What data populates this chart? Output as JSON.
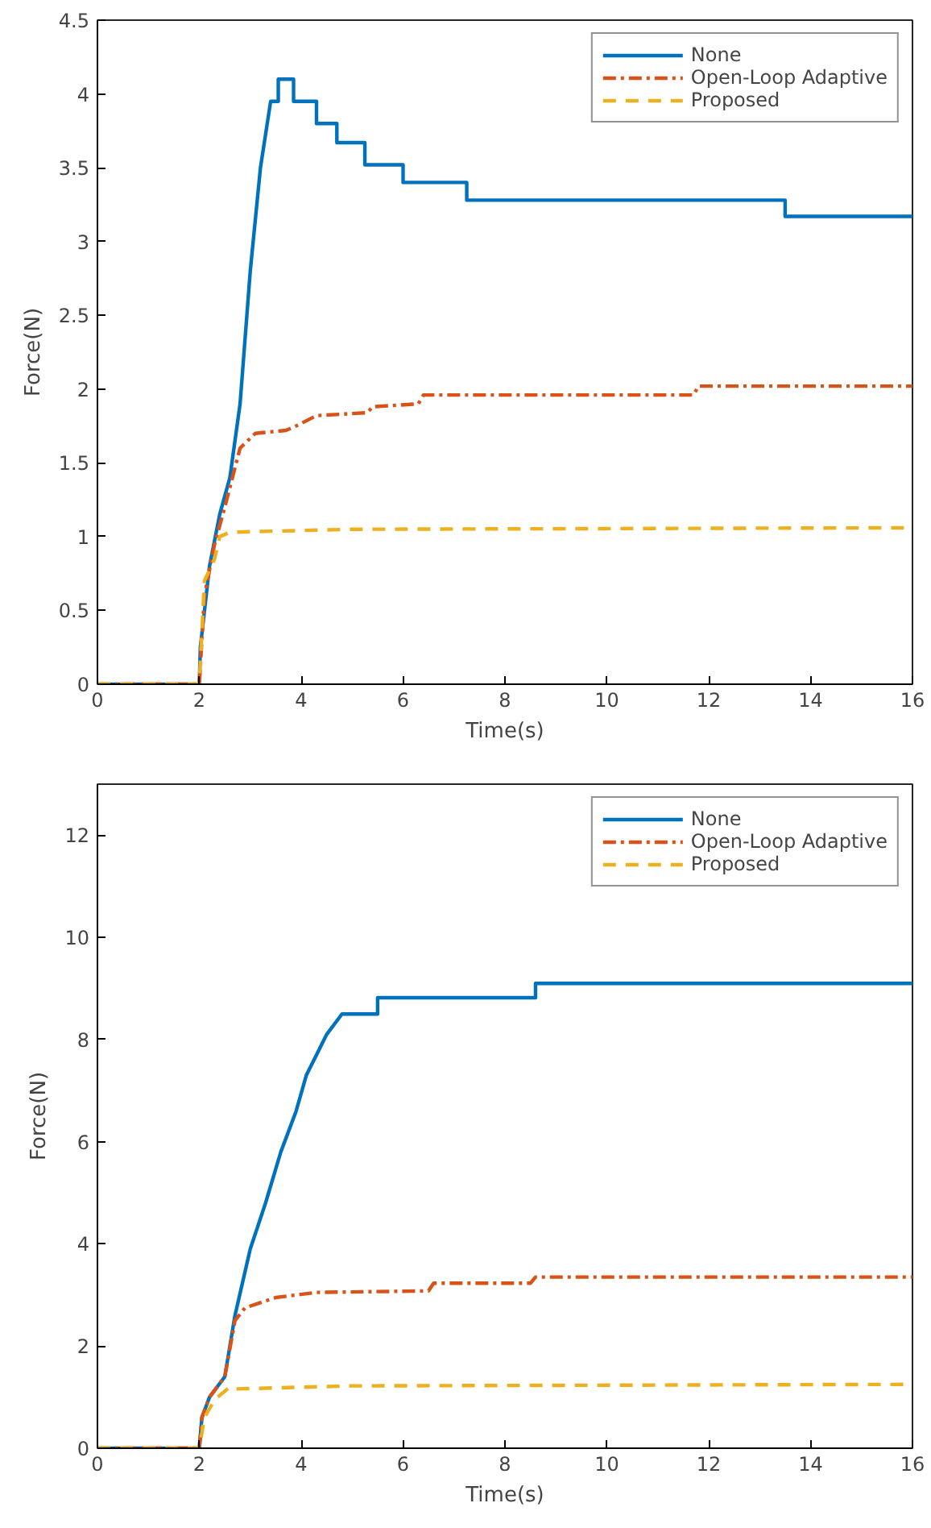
{
  "chart_data": [
    {
      "type": "line",
      "xlabel": "Time(s)",
      "ylabel": "Force(N)",
      "xlim": [
        0,
        16
      ],
      "ylim": [
        0,
        4.5
      ],
      "xticks": [
        0,
        2,
        4,
        6,
        8,
        10,
        12,
        14,
        16
      ],
      "yticks": [
        0,
        0.5,
        1,
        1.5,
        2,
        2.5,
        3,
        3.5,
        4,
        4.5
      ],
      "grid": false,
      "legend": "top right",
      "series": [
        {
          "name": "None",
          "color": "#0072bd",
          "line_style": "solid",
          "x": [
            0,
            2,
            2.02,
            2.2,
            2.4,
            2.6,
            2.8,
            3.0,
            3.2,
            3.4,
            3.55,
            3.55,
            3.85,
            3.85,
            4.3,
            4.3,
            4.7,
            4.7,
            5.25,
            5.25,
            6.0,
            6.0,
            7.25,
            7.25,
            13.5,
            13.5,
            16
          ],
          "values": [
            0,
            0,
            0.25,
            0.8,
            1.15,
            1.4,
            1.9,
            2.8,
            3.5,
            3.95,
            3.95,
            4.1,
            4.1,
            3.95,
            3.95,
            3.8,
            3.8,
            3.67,
            3.67,
            3.52,
            3.52,
            3.4,
            3.4,
            3.28,
            3.28,
            3.17,
            3.17
          ]
        },
        {
          "name": "Open-Loop Adaptive",
          "color": "#d95319",
          "line_style": "dashdot",
          "x": [
            0,
            2,
            2.1,
            2.3,
            2.5,
            2.8,
            3.1,
            3.7,
            3.9,
            4.3,
            5.3,
            5.4,
            6.3,
            6.4,
            11.7,
            11.8,
            16
          ],
          "values": [
            0,
            0,
            0.6,
            0.95,
            1.2,
            1.6,
            1.7,
            1.72,
            1.75,
            1.82,
            1.84,
            1.88,
            1.9,
            1.96,
            1.96,
            2.02,
            2.02
          ]
        },
        {
          "name": "Proposed",
          "color": "#edb120",
          "line_style": "dashed",
          "x": [
            0,
            2,
            2.1,
            2.3,
            2.4,
            2.6,
            5.0,
            16
          ],
          "values": [
            0,
            0,
            0.7,
            0.85,
            1.0,
            1.03,
            1.05,
            1.06
          ]
        }
      ]
    },
    {
      "type": "line",
      "xlabel": "Time(s)",
      "ylabel": "Force(N)",
      "xlim": [
        0,
        16
      ],
      "ylim": [
        0,
        13
      ],
      "xticks": [
        0,
        2,
        4,
        6,
        8,
        10,
        12,
        14,
        16
      ],
      "yticks": [
        0,
        2,
        4,
        6,
        8,
        10,
        12
      ],
      "grid": false,
      "legend": "top right",
      "series": [
        {
          "name": "None",
          "color": "#0072bd",
          "line_style": "solid",
          "x": [
            0,
            2,
            2.05,
            2.2,
            2.5,
            2.7,
            3.0,
            3.3,
            3.6,
            3.9,
            4.1,
            4.3,
            4.5,
            4.8,
            5.5,
            5.5,
            8.6,
            8.6,
            16
          ],
          "values": [
            0,
            0,
            0.6,
            1.0,
            1.4,
            2.6,
            3.9,
            4.8,
            5.8,
            6.6,
            7.3,
            7.7,
            8.1,
            8.5,
            8.5,
            8.82,
            8.82,
            9.1,
            9.1
          ]
        },
        {
          "name": "Open-Loop Adaptive",
          "color": "#d95319",
          "line_style": "dashdot",
          "x": [
            0,
            2,
            2.05,
            2.2,
            2.5,
            2.7,
            2.9,
            3.5,
            4.3,
            6.5,
            6.6,
            8.5,
            8.6,
            16
          ],
          "values": [
            0,
            0,
            0.6,
            1.0,
            1.4,
            2.5,
            2.75,
            2.95,
            3.05,
            3.08,
            3.23,
            3.23,
            3.35,
            3.35
          ]
        },
        {
          "name": "Proposed",
          "color": "#edb120",
          "line_style": "dashed",
          "x": [
            0,
            2,
            2.1,
            2.3,
            2.6,
            2.7,
            5.0,
            16
          ],
          "values": [
            0,
            0,
            0.6,
            0.95,
            1.2,
            1.16,
            1.22,
            1.25
          ]
        }
      ]
    }
  ]
}
